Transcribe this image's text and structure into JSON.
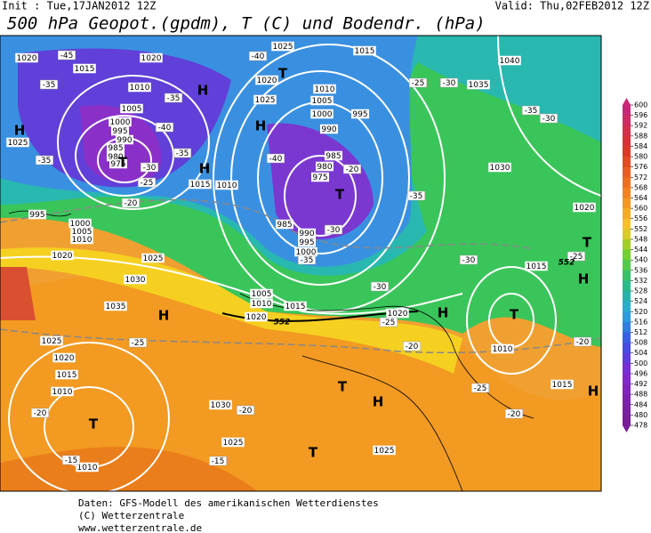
{
  "header": {
    "init": "Init : Tue,17JAN2012 12Z",
    "valid": "Valid: Thu,02FEB2012 12Z",
    "title": "500 hPa Geopot.(gpdm), T (C) und Bodendr. (hPa)"
  },
  "footer": [
    "Daten: GFS-Modell des amerikanischen Wetterdienstes",
    "(C) Wetterzentrale",
    "www.wetterzentrale.de"
  ],
  "colorbar": {
    "levels": [
      600,
      596,
      592,
      588,
      584,
      580,
      576,
      572,
      568,
      564,
      560,
      556,
      552,
      548,
      544,
      540,
      536,
      532,
      528,
      524,
      520,
      516,
      512,
      508,
      504,
      500,
      496,
      492,
      488,
      484,
      480,
      478
    ]
  },
  "map": {
    "isobar_labels": [
      1020,
      1015,
      1020,
      1010,
      1005,
      1000,
      995,
      990,
      985,
      980,
      975,
      1025,
      1015,
      1010,
      995,
      1000,
      1005,
      1010,
      1020,
      1025,
      1030,
      1035,
      1025,
      1020,
      1015,
      1010,
      1010,
      1030,
      1025,
      1025,
      1015,
      1010,
      1015,
      1020,
      1030,
      1035,
      1040,
      1025,
      1020,
      1025,
      1015,
      1010,
      1005,
      1000,
      995,
      990,
      985,
      980,
      975,
      985,
      990,
      995,
      1000,
      1005,
      1010,
      1015,
      1020,
      1020
    ],
    "temperature_labels": [
      -45,
      -35,
      -40,
      -35,
      -30,
      -25,
      -20,
      -35,
      -40,
      -35,
      -40,
      -35,
      -30,
      -35,
      -30,
      -25,
      -20,
      -30,
      -25,
      -20,
      -25,
      -20,
      -25,
      -20,
      -15,
      -15,
      -20,
      -25,
      -30,
      -35,
      -30,
      -20
    ],
    "centers": [
      "H",
      "H",
      "T",
      "H",
      "T",
      "H",
      "T",
      "H",
      "T",
      "H",
      "T",
      "T",
      "H",
      "T",
      "H",
      "T",
      "H"
    ],
    "contour_552": [
      "552",
      "552"
    ]
  }
}
